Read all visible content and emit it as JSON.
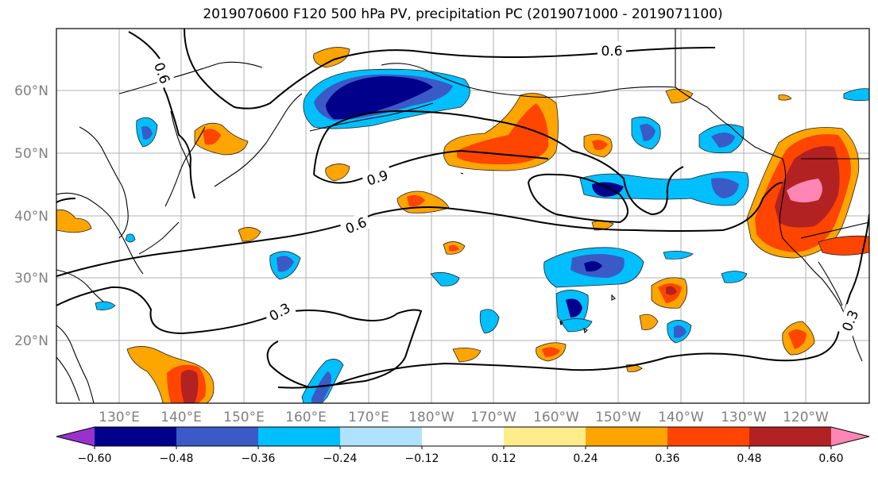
{
  "title": "2019070600 F120 500 hPa PV, precipitation PC (2019071000 - 2019071100)",
  "lat_labels": [
    "60°N",
    "50°N",
    "40°N",
    "30°N",
    "20°N"
  ],
  "lon_labels": [
    "130°E",
    "140°E",
    "150°E",
    "160°E",
    "170°E",
    "180°W",
    "170°W",
    "160°W",
    "150°W",
    "140°W",
    "130°W",
    "120°W"
  ],
  "contour_labels": [
    "0.6",
    "0.9",
    "0.6",
    "0.3",
    "0.3",
    "0.6"
  ],
  "colorbar": {
    "colors": [
      "#9932cc",
      "#00008b",
      "#3a5bc7",
      "#00bfff",
      "#b0e2ff",
      "#ffffff",
      "#ffec8b",
      "#ffa500",
      "#ff4500",
      "#b22222",
      "#ff86b4"
    ],
    "labels": [
      "−0.60",
      "−0.48",
      "−0.36",
      "−0.24",
      "−0.12",
      "0.12",
      "0.24",
      "0.36",
      "0.48",
      "0.60"
    ]
  }
}
